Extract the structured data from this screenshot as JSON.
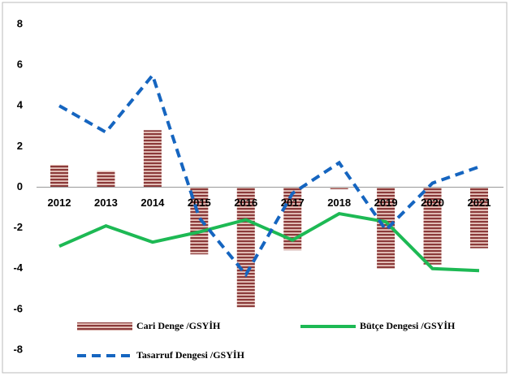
{
  "chart_data": {
    "type": "bar_line",
    "categories": [
      "2012",
      "2013",
      "2014",
      "2015",
      "2016",
      "2017",
      "2018",
      "2019",
      "2020",
      "2021"
    ],
    "series": [
      {
        "name": "Cari Denge /GSYİH",
        "color": "#8b3a3a",
        "kind": "bar",
        "values": [
          1.1,
          0.8,
          2.8,
          -3.3,
          -5.9,
          -3.1,
          -0.1,
          -4.0,
          -3.8,
          -3.0
        ]
      },
      {
        "name": "Bütçe Dengesi /GSYİH",
        "color": "#1db954",
        "kind": "line",
        "values": [
          -2.9,
          -1.9,
          -2.7,
          -2.2,
          -1.6,
          -2.6,
          -1.3,
          -1.7,
          -4.0,
          -4.1
        ]
      },
      {
        "name": "Tasarruf Dengesi /GSYİH",
        "color": "#1565c0",
        "kind": "dashed",
        "values": [
          4.0,
          2.7,
          5.5,
          -1.5,
          -4.3,
          -0.3,
          1.2,
          -2.1,
          0.2,
          1.0
        ]
      }
    ],
    "ylim": [
      -8,
      8
    ],
    "yticks": [
      -8,
      -6,
      -4,
      -2,
      0,
      2,
      4,
      6,
      8
    ],
    "grid": false
  }
}
